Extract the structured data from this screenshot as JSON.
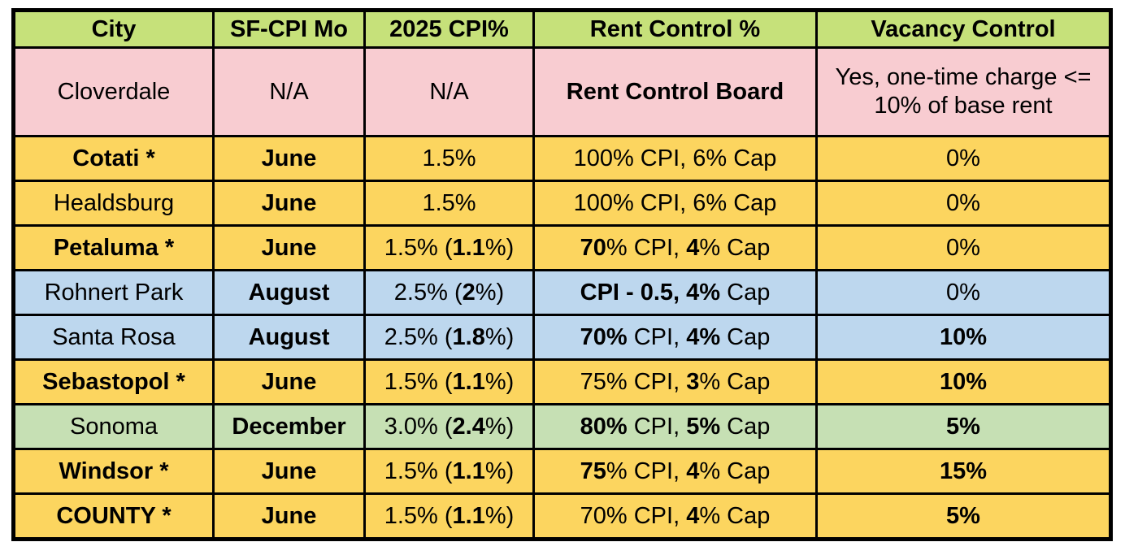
{
  "colors": {
    "header": "#C6E17A",
    "pink": "#F8CCD1",
    "yellow": "#FCD55F",
    "blue": "#BDD7EE",
    "green": "#C6E0B4",
    "border": "#000000",
    "text": "#000000",
    "page_background": "#FFFFFF"
  },
  "table": {
    "columns": [
      {
        "id": "city",
        "label": "City"
      },
      {
        "id": "sf-cpi-month",
        "label": "SF-CPI Mo"
      },
      {
        "id": "2025-cpi",
        "label": "2025 CPI%"
      },
      {
        "id": "rent-control",
        "label": "Rent Control %"
      },
      {
        "id": "vacancy-control",
        "label": "Vacancy Control"
      }
    ],
    "rows": [
      {
        "id": "cloverdale",
        "color": "pink",
        "tall": true,
        "cells": [
          {
            "lines": [
              [
                {
                  "text": "Cloverdale",
                  "bold": false
                }
              ]
            ]
          },
          {
            "lines": [
              [
                {
                  "text": "N/A",
                  "bold": false
                }
              ]
            ]
          },
          {
            "lines": [
              [
                {
                  "text": "N/A",
                  "bold": false
                }
              ]
            ]
          },
          {
            "lines": [
              [
                {
                  "text": "Rent Control Board",
                  "bold": true
                }
              ]
            ]
          },
          {
            "wrap": true,
            "lines": [
              [
                {
                  "text": "Yes, one-time charge <= 10% of base rent",
                  "bold": false
                }
              ]
            ]
          }
        ]
      },
      {
        "id": "cotati",
        "color": "yellow",
        "tall": false,
        "cells": [
          {
            "lines": [
              [
                {
                  "text": "Cotati *",
                  "bold": true
                }
              ]
            ]
          },
          {
            "lines": [
              [
                {
                  "text": "June",
                  "bold": true
                }
              ]
            ]
          },
          {
            "lines": [
              [
                {
                  "text": "1.5%",
                  "bold": false
                }
              ]
            ]
          },
          {
            "lines": [
              [
                {
                  "text": "100% CPI, 6% Cap",
                  "bold": false
                }
              ]
            ]
          },
          {
            "lines": [
              [
                {
                  "text": "0%",
                  "bold": false
                }
              ]
            ]
          }
        ]
      },
      {
        "id": "healdsburg",
        "color": "yellow",
        "tall": false,
        "cells": [
          {
            "lines": [
              [
                {
                  "text": "Healdsburg",
                  "bold": false
                }
              ]
            ]
          },
          {
            "lines": [
              [
                {
                  "text": "June",
                  "bold": true
                }
              ]
            ]
          },
          {
            "lines": [
              [
                {
                  "text": "1.5%",
                  "bold": false
                }
              ]
            ]
          },
          {
            "lines": [
              [
                {
                  "text": "100% CPI, 6% Cap",
                  "bold": false
                }
              ]
            ]
          },
          {
            "lines": [
              [
                {
                  "text": "0%",
                  "bold": false
                }
              ]
            ]
          }
        ]
      },
      {
        "id": "petaluma",
        "color": "yellow",
        "tall": false,
        "cells": [
          {
            "lines": [
              [
                {
                  "text": "Petaluma *",
                  "bold": true
                }
              ]
            ]
          },
          {
            "lines": [
              [
                {
                  "text": "June",
                  "bold": true
                }
              ]
            ]
          },
          {
            "lines": [
              [
                {
                  "text": "1.5% (",
                  "bold": false
                },
                {
                  "text": "1.1",
                  "bold": true
                },
                {
                  "text": "%)",
                  "bold": false
                }
              ]
            ]
          },
          {
            "lines": [
              [
                {
                  "text": "70",
                  "bold": true
                },
                {
                  "text": "% CPI, ",
                  "bold": false
                },
                {
                  "text": "4",
                  "bold": true
                },
                {
                  "text": "% Cap",
                  "bold": false
                }
              ]
            ]
          },
          {
            "lines": [
              [
                {
                  "text": "0%",
                  "bold": false
                }
              ]
            ]
          }
        ]
      },
      {
        "id": "rohnert-park",
        "color": "blue",
        "tall": false,
        "cells": [
          {
            "lines": [
              [
                {
                  "text": "Rohnert Park",
                  "bold": false
                }
              ]
            ]
          },
          {
            "lines": [
              [
                {
                  "text": "August",
                  "bold": true
                }
              ]
            ]
          },
          {
            "lines": [
              [
                {
                  "text": "2.5% (",
                  "bold": false
                },
                {
                  "text": "2",
                  "bold": true
                },
                {
                  "text": "%)",
                  "bold": false
                }
              ]
            ]
          },
          {
            "lines": [
              [
                {
                  "text": "CPI - 0.5, 4%",
                  "bold": true
                },
                {
                  "text": " Cap",
                  "bold": false
                }
              ]
            ]
          },
          {
            "lines": [
              [
                {
                  "text": "0%",
                  "bold": false
                }
              ]
            ]
          }
        ]
      },
      {
        "id": "santa-rosa",
        "color": "blue",
        "tall": false,
        "cells": [
          {
            "lines": [
              [
                {
                  "text": "Santa Rosa",
                  "bold": false
                }
              ]
            ]
          },
          {
            "lines": [
              [
                {
                  "text": "August",
                  "bold": true
                }
              ]
            ]
          },
          {
            "lines": [
              [
                {
                  "text": "2.5% (",
                  "bold": false
                },
                {
                  "text": "1.8",
                  "bold": true
                },
                {
                  "text": "%)",
                  "bold": false
                }
              ]
            ]
          },
          {
            "lines": [
              [
                {
                  "text": "70%",
                  "bold": true
                },
                {
                  "text": " CPI, ",
                  "bold": false
                },
                {
                  "text": "4%",
                  "bold": true
                },
                {
                  "text": " Cap",
                  "bold": false
                }
              ]
            ]
          },
          {
            "lines": [
              [
                {
                  "text": "10%",
                  "bold": true
                }
              ]
            ]
          }
        ]
      },
      {
        "id": "sebastopol",
        "color": "yellow",
        "tall": false,
        "cells": [
          {
            "lines": [
              [
                {
                  "text": "Sebastopol *",
                  "bold": true
                }
              ]
            ]
          },
          {
            "lines": [
              [
                {
                  "text": "June",
                  "bold": true
                }
              ]
            ]
          },
          {
            "lines": [
              [
                {
                  "text": "1.5% (",
                  "bold": false
                },
                {
                  "text": "1.1",
                  "bold": true
                },
                {
                  "text": "%)",
                  "bold": false
                }
              ]
            ]
          },
          {
            "lines": [
              [
                {
                  "text": "75% CPI, ",
                  "bold": false
                },
                {
                  "text": "3",
                  "bold": true
                },
                {
                  "text": "% Cap",
                  "bold": false
                }
              ]
            ]
          },
          {
            "lines": [
              [
                {
                  "text": "10%",
                  "bold": true
                }
              ]
            ]
          }
        ]
      },
      {
        "id": "sonoma",
        "color": "green",
        "tall": false,
        "cells": [
          {
            "lines": [
              [
                {
                  "text": "Sonoma",
                  "bold": false
                }
              ]
            ]
          },
          {
            "lines": [
              [
                {
                  "text": "December",
                  "bold": true
                }
              ]
            ]
          },
          {
            "lines": [
              [
                {
                  "text": "3.0% (",
                  "bold": false
                },
                {
                  "text": "2.4",
                  "bold": true
                },
                {
                  "text": "%)",
                  "bold": false
                }
              ]
            ]
          },
          {
            "lines": [
              [
                {
                  "text": "80%",
                  "bold": true
                },
                {
                  "text": " CPI, ",
                  "bold": false
                },
                {
                  "text": "5%",
                  "bold": true
                },
                {
                  "text": " Cap",
                  "bold": false
                }
              ]
            ]
          },
          {
            "lines": [
              [
                {
                  "text": "5%",
                  "bold": true
                }
              ]
            ]
          }
        ]
      },
      {
        "id": "windsor",
        "color": "yellow",
        "tall": false,
        "cells": [
          {
            "lines": [
              [
                {
                  "text": "Windsor *",
                  "bold": true
                }
              ]
            ]
          },
          {
            "lines": [
              [
                {
                  "text": "June",
                  "bold": true
                }
              ]
            ]
          },
          {
            "lines": [
              [
                {
                  "text": "1.5% (",
                  "bold": false
                },
                {
                  "text": "1.1",
                  "bold": true
                },
                {
                  "text": "%)",
                  "bold": false
                }
              ]
            ]
          },
          {
            "lines": [
              [
                {
                  "text": "75",
                  "bold": true
                },
                {
                  "text": "% CPI, ",
                  "bold": false
                },
                {
                  "text": "4",
                  "bold": true
                },
                {
                  "text": "% Cap",
                  "bold": false
                }
              ]
            ]
          },
          {
            "lines": [
              [
                {
                  "text": "15%",
                  "bold": true
                }
              ]
            ]
          }
        ]
      },
      {
        "id": "county",
        "color": "yellow",
        "tall": false,
        "cells": [
          {
            "lines": [
              [
                {
                  "text": "COUNTY *",
                  "bold": true
                }
              ]
            ]
          },
          {
            "lines": [
              [
                {
                  "text": "June",
                  "bold": true
                }
              ]
            ]
          },
          {
            "lines": [
              [
                {
                  "text": "1.5% (",
                  "bold": false
                },
                {
                  "text": "1.1",
                  "bold": true
                },
                {
                  "text": "%)",
                  "bold": false
                }
              ]
            ]
          },
          {
            "lines": [
              [
                {
                  "text": "70% CPI, ",
                  "bold": false
                },
                {
                  "text": "4",
                  "bold": true
                },
                {
                  "text": "% Cap",
                  "bold": false
                }
              ]
            ]
          },
          {
            "lines": [
              [
                {
                  "text": "5%",
                  "bold": true
                }
              ]
            ]
          }
        ]
      }
    ]
  }
}
